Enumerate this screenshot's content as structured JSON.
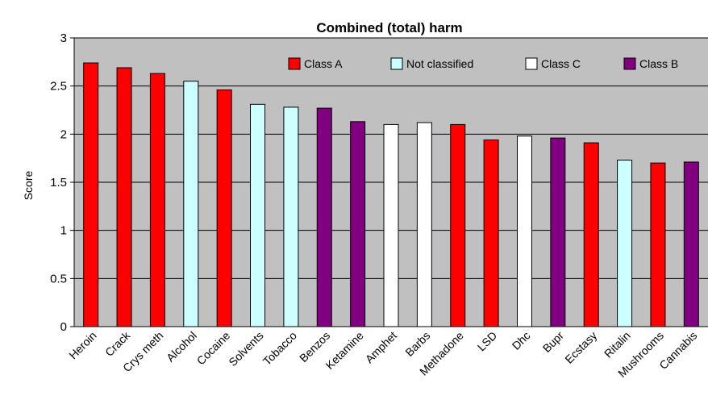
{
  "chart_data": {
    "type": "bar",
    "title": "Combined (total) harm",
    "ylabel": "Score",
    "xlabel": "",
    "ylim": [
      0,
      3
    ],
    "yticks": [
      0,
      0.5,
      1,
      1.5,
      2,
      2.5,
      3
    ],
    "ytick_labels": [
      "0",
      "0.5",
      "1",
      "1.5",
      "2",
      "2.5",
      "3"
    ],
    "grid": true,
    "legend_position": "top-right",
    "categories": [
      "Heroin",
      "Crack",
      "Crys meth",
      "Alcohol",
      "Cocaine",
      "Solvents",
      "Tobacco",
      "Benzos",
      "Ketamine",
      "Amphet",
      "Barbs",
      "Methadone",
      "LSD",
      "Dhc",
      "Bupr",
      "Ecstasy",
      "Ritalin",
      "Mushrooms",
      "Cannabis"
    ],
    "values": [
      2.74,
      2.69,
      2.63,
      2.55,
      2.46,
      2.31,
      2.28,
      2.27,
      2.13,
      2.1,
      2.12,
      2.1,
      1.94,
      1.98,
      1.96,
      1.91,
      1.73,
      1.7,
      1.71
    ],
    "classes": [
      "Class A",
      "Class A",
      "Class A",
      "Not classified",
      "Class A",
      "Not classified",
      "Not classified",
      "Class B",
      "Class B",
      "Class C",
      "Class C",
      "Class A",
      "Class A",
      "Class C",
      "Class B",
      "Class A",
      "Not classified",
      "Class A",
      "Class B"
    ],
    "legend": [
      {
        "name": "Class A",
        "color": "#ff0000"
      },
      {
        "name": "Not classified",
        "color": "#ccffff"
      },
      {
        "name": "Class C",
        "color": "#ffffff"
      },
      {
        "name": "Class B",
        "color": "#800080"
      }
    ],
    "plot_background": "#c0c0c0"
  }
}
